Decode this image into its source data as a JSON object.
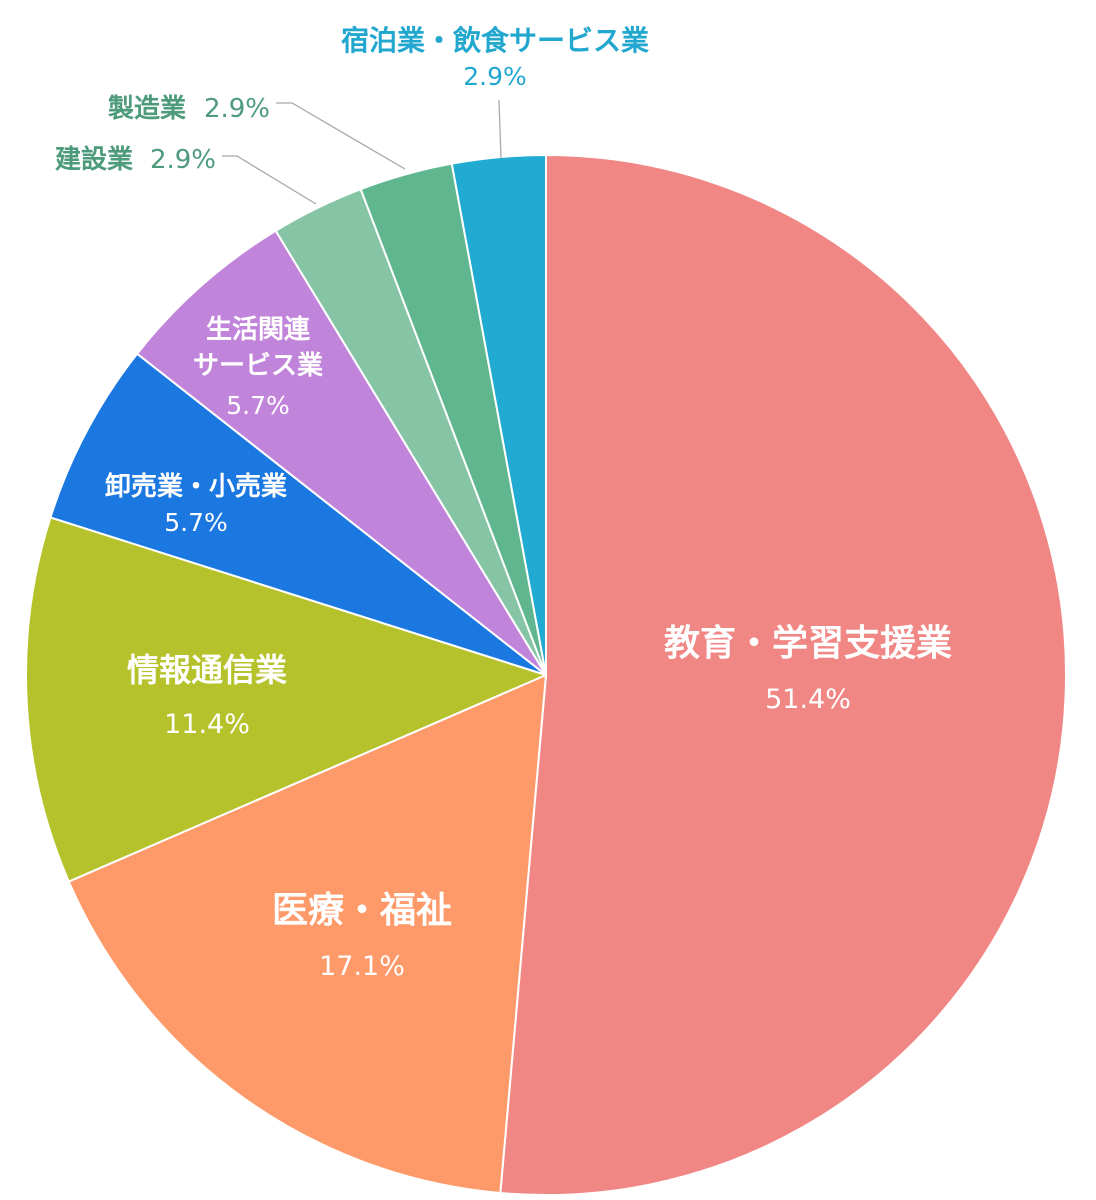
{
  "chart_data": {
    "type": "pie",
    "title": "",
    "start_angle_deg": 0,
    "direction": "clockwise",
    "slices": [
      {
        "label": "教育・学習支援業",
        "value": 51.4,
        "value_text": "51.4%",
        "color": "#F08784"
      },
      {
        "label": "医療・福祉",
        "value": 17.1,
        "value_text": "17.1%",
        "color": "#FE9A69"
      },
      {
        "label": "情報通信業",
        "value": 11.4,
        "value_text": "11.4%",
        "color": "#B6C22B"
      },
      {
        "label": "卸売業・小売業",
        "value": 5.7,
        "value_text": "5.7%",
        "color": "#1C78E1"
      },
      {
        "label": "生活関連サービス業",
        "label_lines": [
          "生活関連",
          "サービス業"
        ],
        "value": 5.7,
        "value_text": "5.7%",
        "color": "#C184DB"
      },
      {
        "label": "建設業",
        "value": 2.9,
        "value_text": "2.9%",
        "color": "#86C4A6"
      },
      {
        "label": "製造業",
        "value": 2.9,
        "value_text": "2.9%",
        "color": "#5FB68F"
      },
      {
        "label": "宿泊業・飲食サービス業",
        "value": 2.9,
        "value_text": "2.9%",
        "color": "#21AAD2"
      }
    ],
    "label_colors": {
      "inside": "#FFFFFF",
      "outside_green": "#4E9A7C",
      "outside_blue": "#22A7CF"
    }
  }
}
